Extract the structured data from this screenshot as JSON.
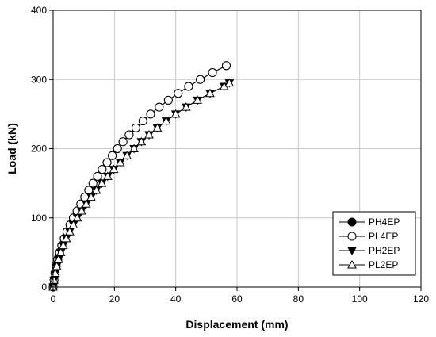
{
  "chart_data": {
    "type": "line",
    "title": "",
    "xlabel": "Displacement (mm)",
    "ylabel": "Load (kN)",
    "xlim": [
      0,
      120
    ],
    "ylim": [
      0,
      400
    ],
    "xticks": [
      0,
      20,
      40,
      60,
      80,
      100,
      120
    ],
    "yticks": [
      0,
      100,
      200,
      300,
      400
    ],
    "grid": true,
    "legend_position": "bottom-right",
    "series": [
      {
        "name": "PH4EP",
        "marker": "filled-circle",
        "color": "#000000",
        "x": [
          0,
          0.3,
          0.6,
          1.0,
          1.5,
          2.1,
          2.8,
          3.6,
          4.5,
          5.5,
          6.6,
          7.8,
          9.0,
          10.3,
          11.6,
          13.0,
          14.5,
          16.0,
          17.6,
          19.3,
          21.0,
          22.8,
          24.8,
          27.0,
          29.3,
          31.8,
          34.6,
          37.6,
          40.8,
          44.2,
          48.0,
          52.0,
          56.5
        ],
        "y": [
          0,
          10,
          20,
          30,
          40,
          50,
          60,
          70,
          80,
          90,
          100,
          110,
          120,
          130,
          140,
          150,
          160,
          170,
          180,
          190,
          200,
          210,
          220,
          230,
          240,
          250,
          260,
          270,
          280,
          290,
          300,
          310,
          320
        ]
      },
      {
        "name": "PL4EP",
        "marker": "open-circle",
        "color": "#000000",
        "x": [
          0,
          0.3,
          0.6,
          1.0,
          1.5,
          2.1,
          2.8,
          3.6,
          4.5,
          5.5,
          6.6,
          7.8,
          9.0,
          10.3,
          11.6,
          13.0,
          14.5,
          16.0,
          17.6,
          19.3,
          21.0,
          22.8,
          24.8,
          27.0,
          29.3,
          31.8,
          34.6,
          37.6,
          40.8,
          44.2,
          48.0,
          52.0,
          56.5
        ],
        "y": [
          0,
          10,
          20,
          30,
          40,
          50,
          60,
          70,
          80,
          90,
          100,
          110,
          120,
          130,
          140,
          150,
          160,
          170,
          180,
          190,
          200,
          210,
          220,
          230,
          240,
          250,
          260,
          270,
          280,
          290,
          300,
          310,
          320
        ]
      },
      {
        "name": "PH2EP",
        "marker": "filled-triangle-down",
        "color": "#000000",
        "x": [
          0,
          0.3,
          0.7,
          1.2,
          1.8,
          2.5,
          3.3,
          4.3,
          5.4,
          6.6,
          7.9,
          9.3,
          10.8,
          12.4,
          14.1,
          15.9,
          17.8,
          19.8,
          21.9,
          24.1,
          26.4,
          28.8,
          31.3,
          34.0,
          36.9,
          40.0,
          43.4,
          47.1,
          51.2,
          55.8,
          57.5
        ],
        "y": [
          0,
          10,
          20,
          30,
          40,
          50,
          60,
          70,
          80,
          90,
          100,
          110,
          120,
          130,
          140,
          150,
          160,
          170,
          180,
          190,
          200,
          210,
          220,
          230,
          240,
          250,
          260,
          270,
          280,
          290,
          295
        ]
      },
      {
        "name": "PL2EP",
        "marker": "open-triangle-up",
        "color": "#000000",
        "x": [
          0,
          0.3,
          0.7,
          1.2,
          1.8,
          2.5,
          3.3,
          4.3,
          5.4,
          6.6,
          7.9,
          9.3,
          10.8,
          12.4,
          14.1,
          15.9,
          17.8,
          19.8,
          21.9,
          24.1,
          26.4,
          28.8,
          31.3,
          34.0,
          36.9,
          40.0,
          43.4,
          47.1,
          51.2,
          55.8,
          57.5
        ],
        "y": [
          0,
          10,
          20,
          30,
          40,
          50,
          60,
          70,
          80,
          90,
          100,
          110,
          120,
          130,
          140,
          150,
          160,
          170,
          180,
          190,
          200,
          210,
          220,
          230,
          240,
          250,
          260,
          270,
          280,
          290,
          295
        ]
      }
    ]
  }
}
